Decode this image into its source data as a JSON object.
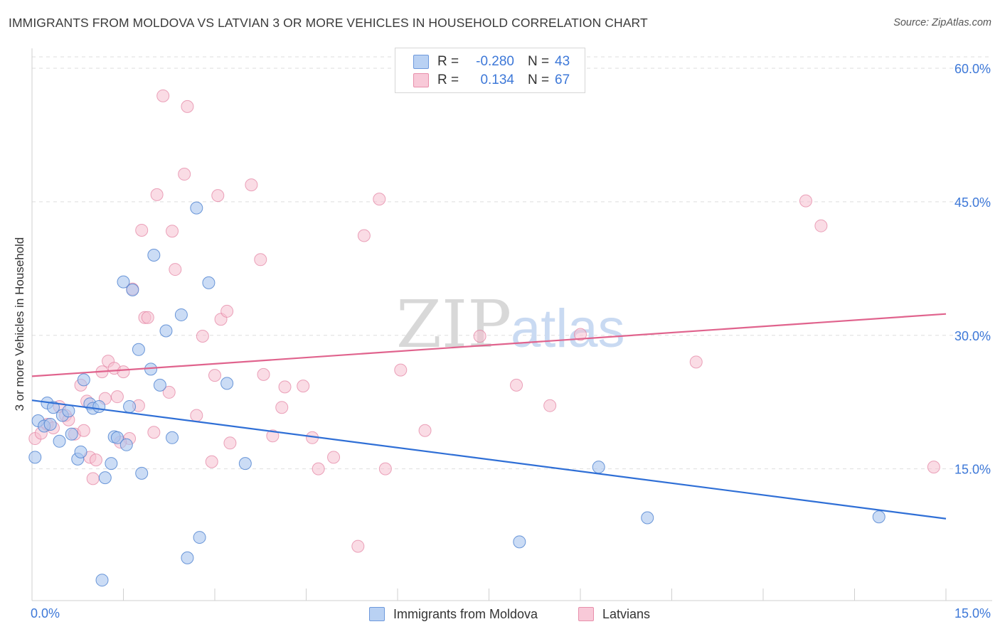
{
  "title": "IMMIGRANTS FROM MOLDOVA VS LATVIAN 3 OR MORE VEHICLES IN HOUSEHOLD CORRELATION CHART",
  "source": "Source: ZipAtlas.com",
  "watermark": {
    "zip": "ZIP",
    "atlas": "atlas"
  },
  "legend": {
    "rows": [
      {
        "r_label": "R =",
        "r_value": "-0.280",
        "n_label": "N =",
        "n_value": "43"
      },
      {
        "r_label": "R =",
        "r_value": "0.134",
        "n_label": "N =",
        "n_value": "67"
      }
    ]
  },
  "bottom_legend": [
    "Immigrants from Moldova",
    "Latvians"
  ],
  "chart_data": {
    "type": "scatter",
    "title": "IMMIGRANTS FROM MOLDOVA VS LATVIAN 3 OR MORE VEHICLES IN HOUSEHOLD CORRELATION CHART",
    "xlabel": "",
    "ylabel": "3 or more Vehicles in Household",
    "xlim": [
      0,
      15
    ],
    "ylim": [
      0,
      60
    ],
    "x_tick_labels": [
      "0.0%",
      "15.0%"
    ],
    "y_ticks": [
      15,
      30,
      45,
      60
    ],
    "y_tick_labels": [
      "15.0%",
      "30.0%",
      "45.0%",
      "60.0%"
    ],
    "grid": true,
    "colors": {
      "moldova_fill": "#a8c5ef",
      "moldova_stroke": "#4a7fd0",
      "moldova_line": "#2f6fd6",
      "latvian_fill": "#f6bfd0",
      "latvian_stroke": "#e27fa0",
      "latvian_line": "#e0638d",
      "axis_text": "#3d78d8"
    },
    "series": [
      {
        "name": "Immigrants from Moldova",
        "r": -0.28,
        "n": 43,
        "trend": {
          "x": [
            0,
            15
          ],
          "y": [
            22.7,
            9.4
          ]
        },
        "points": [
          {
            "x": 0.05,
            "y": 16.3
          },
          {
            "x": 0.1,
            "y": 20.4
          },
          {
            "x": 0.2,
            "y": 19.8
          },
          {
            "x": 0.25,
            "y": 22.4
          },
          {
            "x": 0.3,
            "y": 20.0
          },
          {
            "x": 0.35,
            "y": 21.9
          },
          {
            "x": 0.45,
            "y": 18.1
          },
          {
            "x": 0.5,
            "y": 21.0
          },
          {
            "x": 0.6,
            "y": 21.5
          },
          {
            "x": 0.65,
            "y": 18.9
          },
          {
            "x": 0.75,
            "y": 16.1
          },
          {
            "x": 0.8,
            "y": 16.9
          },
          {
            "x": 0.85,
            "y": 25.0
          },
          {
            "x": 0.95,
            "y": 22.3
          },
          {
            "x": 1.0,
            "y": 21.8
          },
          {
            "x": 1.1,
            "y": 22.0
          },
          {
            "x": 1.2,
            "y": 14.0
          },
          {
            "x": 1.3,
            "y": 15.6
          },
          {
            "x": 1.35,
            "y": 18.6
          },
          {
            "x": 1.4,
            "y": 18.5
          },
          {
            "x": 1.5,
            "y": 36.0
          },
          {
            "x": 1.55,
            "y": 17.7
          },
          {
            "x": 1.6,
            "y": 22.0
          },
          {
            "x": 1.65,
            "y": 35.1
          },
          {
            "x": 1.75,
            "y": 28.4
          },
          {
            "x": 1.8,
            "y": 14.5
          },
          {
            "x": 1.95,
            "y": 26.2
          },
          {
            "x": 2.0,
            "y": 39.0
          },
          {
            "x": 2.1,
            "y": 24.4
          },
          {
            "x": 2.2,
            "y": 30.5
          },
          {
            "x": 2.3,
            "y": 18.5
          },
          {
            "x": 2.45,
            "y": 32.3
          },
          {
            "x": 2.7,
            "y": 44.3
          },
          {
            "x": 2.75,
            "y": 7.3
          },
          {
            "x": 2.9,
            "y": 35.9
          },
          {
            "x": 3.2,
            "y": 24.6
          },
          {
            "x": 3.5,
            "y": 15.6
          },
          {
            "x": 1.15,
            "y": 2.5
          },
          {
            "x": 2.55,
            "y": 5.0
          },
          {
            "x": 8.0,
            "y": 6.8
          },
          {
            "x": 9.3,
            "y": 15.2
          },
          {
            "x": 10.1,
            "y": 9.5
          },
          {
            "x": 13.9,
            "y": 9.6
          }
        ]
      },
      {
        "name": "Latvians",
        "r": 0.134,
        "n": 67,
        "trend": {
          "x": [
            0,
            15
          ],
          "y": [
            25.4,
            32.4
          ]
        },
        "points": [
          {
            "x": 0.05,
            "y": 18.4
          },
          {
            "x": 0.15,
            "y": 19.0
          },
          {
            "x": 0.25,
            "y": 20.0
          },
          {
            "x": 0.35,
            "y": 19.6
          },
          {
            "x": 0.45,
            "y": 22.0
          },
          {
            "x": 0.55,
            "y": 21.0
          },
          {
            "x": 0.6,
            "y": 20.5
          },
          {
            "x": 0.7,
            "y": 18.9
          },
          {
            "x": 0.8,
            "y": 24.4
          },
          {
            "x": 0.9,
            "y": 22.6
          },
          {
            "x": 0.95,
            "y": 16.3
          },
          {
            "x": 1.0,
            "y": 13.9
          },
          {
            "x": 1.05,
            "y": 16.0
          },
          {
            "x": 1.15,
            "y": 25.9
          },
          {
            "x": 1.2,
            "y": 22.9
          },
          {
            "x": 1.25,
            "y": 27.1
          },
          {
            "x": 1.35,
            "y": 26.3
          },
          {
            "x": 1.4,
            "y": 23.1
          },
          {
            "x": 1.5,
            "y": 25.9
          },
          {
            "x": 1.6,
            "y": 18.4
          },
          {
            "x": 1.65,
            "y": 35.2
          },
          {
            "x": 1.75,
            "y": 22.1
          },
          {
            "x": 1.8,
            "y": 41.8
          },
          {
            "x": 1.85,
            "y": 32.0
          },
          {
            "x": 1.9,
            "y": 32.0
          },
          {
            "x": 2.0,
            "y": 19.1
          },
          {
            "x": 2.05,
            "y": 45.8
          },
          {
            "x": 2.15,
            "y": 56.9
          },
          {
            "x": 2.25,
            "y": 23.6
          },
          {
            "x": 2.3,
            "y": 41.7
          },
          {
            "x": 2.35,
            "y": 37.4
          },
          {
            "x": 2.5,
            "y": 48.1
          },
          {
            "x": 2.55,
            "y": 55.7
          },
          {
            "x": 2.7,
            "y": 21.0
          },
          {
            "x": 2.8,
            "y": 29.9
          },
          {
            "x": 2.95,
            "y": 15.8
          },
          {
            "x": 3.0,
            "y": 25.5
          },
          {
            "x": 3.05,
            "y": 45.7
          },
          {
            "x": 3.1,
            "y": 31.8
          },
          {
            "x": 3.2,
            "y": 32.7
          },
          {
            "x": 3.25,
            "y": 17.9
          },
          {
            "x": 3.6,
            "y": 46.9
          },
          {
            "x": 3.75,
            "y": 38.5
          },
          {
            "x": 3.8,
            "y": 25.6
          },
          {
            "x": 3.95,
            "y": 18.7
          },
          {
            "x": 4.1,
            "y": 21.9
          },
          {
            "x": 4.15,
            "y": 24.2
          },
          {
            "x": 4.45,
            "y": 24.3
          },
          {
            "x": 4.6,
            "y": 18.5
          },
          {
            "x": 4.7,
            "y": 15.0
          },
          {
            "x": 4.95,
            "y": 16.3
          },
          {
            "x": 5.35,
            "y": 6.3
          },
          {
            "x": 5.45,
            "y": 41.2
          },
          {
            "x": 5.7,
            "y": 45.3
          },
          {
            "x": 5.8,
            "y": 15.0
          },
          {
            "x": 6.05,
            "y": 26.1
          },
          {
            "x": 6.45,
            "y": 19.3
          },
          {
            "x": 7.35,
            "y": 29.9
          },
          {
            "x": 7.95,
            "y": 24.4
          },
          {
            "x": 8.5,
            "y": 22.1
          },
          {
            "x": 9.0,
            "y": 30.1
          },
          {
            "x": 10.9,
            "y": 27.0
          },
          {
            "x": 12.7,
            "y": 45.1
          },
          {
            "x": 12.95,
            "y": 42.3
          },
          {
            "x": 14.8,
            "y": 15.2
          },
          {
            "x": 0.85,
            "y": 19.3
          },
          {
            "x": 1.45,
            "y": 18.0
          }
        ]
      }
    ]
  }
}
